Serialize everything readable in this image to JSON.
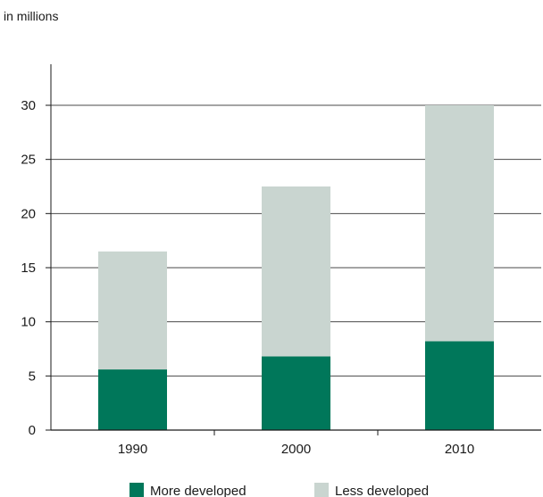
{
  "chart_data": {
    "type": "bar",
    "stacked": true,
    "unit_label": "in millions",
    "categories": [
      "1990",
      "2000",
      "2010"
    ],
    "series": [
      {
        "name": "More developed",
        "values": [
          5.6,
          6.8,
          8.2
        ],
        "color": "#00775a"
      },
      {
        "name": "Less developed",
        "values": [
          10.9,
          15.7,
          21.8
        ],
        "color": "#c9d5d0"
      }
    ],
    "ylim": [
      0,
      30
    ],
    "yticks": [
      0,
      5,
      10,
      15,
      20,
      25,
      30
    ],
    "grid": true,
    "legend": "bottom"
  }
}
